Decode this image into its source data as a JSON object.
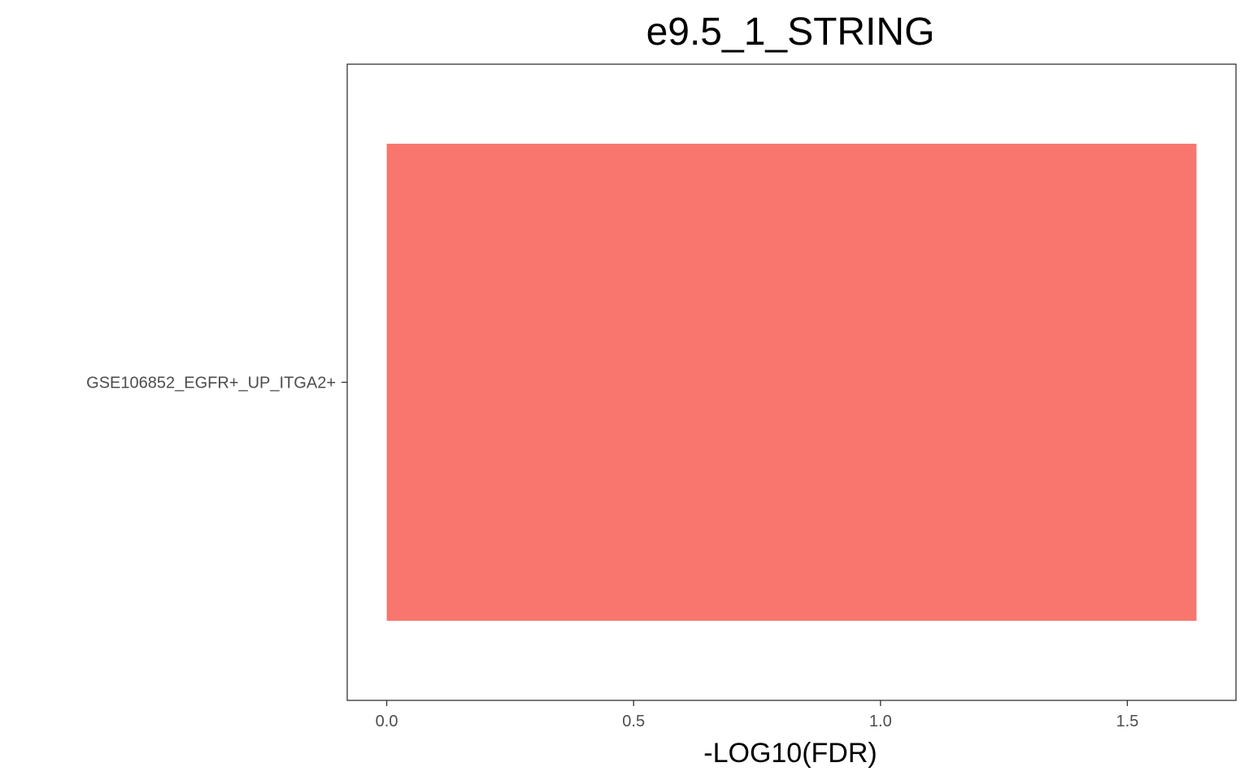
{
  "chart_data": {
    "type": "bar",
    "orientation": "horizontal",
    "title": "e9.5_1_STRING",
    "xlabel": "-LOG10(FDR)",
    "ylabel": "",
    "categories": [
      "GSE106852_EGFR+_UP_ITGA2+"
    ],
    "values": [
      1.64
    ],
    "xlim": [
      -0.08,
      1.72
    ],
    "xticks": [
      0.0,
      0.5,
      1.0,
      1.5
    ],
    "xtick_labels": [
      "0.0",
      "0.5",
      "1.0",
      "1.5"
    ],
    "grid": false,
    "legend": "none",
    "bar_color": "#F8766D"
  }
}
